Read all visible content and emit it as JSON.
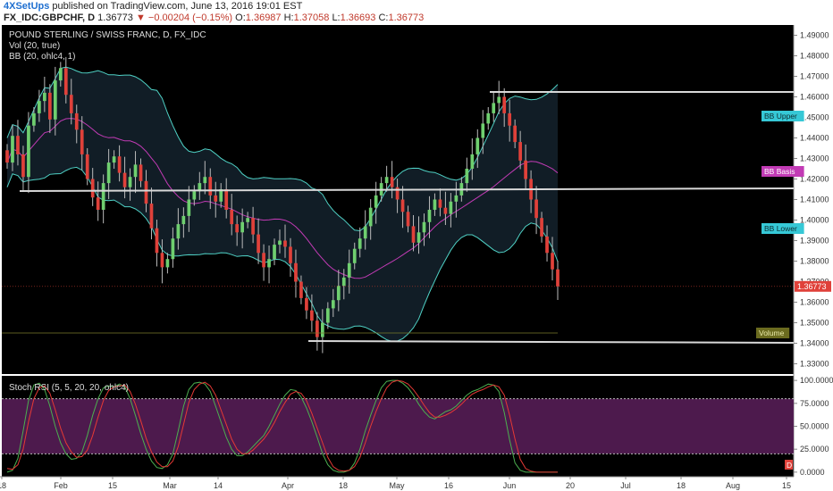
{
  "header": {
    "author": "4XSetUps",
    "published_text": "published on TradingView.com, June 13, 2016 19:01 EST",
    "symbol": "FX_IDC:GBPCHF, D",
    "last": "1.36773",
    "change": "−0.00204 (−0.15%)",
    "o_label": "O:",
    "o_value": "1.36987",
    "h_label": "H:",
    "h_value": "1.37058",
    "l_label": "L:",
    "l_value": "1.36693",
    "c_label": "C:",
    "c_value": "1.36773"
  },
  "legend": {
    "title": "POUND STERLING / SWISS FRANC, D, FX_IDC",
    "vol": "Vol (20, true)",
    "bb": "BB (20, ohlc4, 1)",
    "stoch": "Stoch RSI (5, 5, 20, 20, ohlc4)"
  },
  "colors": {
    "background": "#000000",
    "up": "#6fcf6f",
    "down": "#e0413a",
    "bb_band": "#4fd1c5",
    "bb_basis": "#c23bb5",
    "levels": "#d8d8d8",
    "rsi_k": "#4caf50",
    "rsi_d": "#e53935",
    "rsi_zone": "#5a1e5a"
  },
  "chart_data": [
    {
      "type": "candlestick",
      "title": "POUND STERLING / SWISS FRANC, D, FX_IDC",
      "ylim": [
        1.325,
        1.495
      ],
      "yticks": [
        "1.33000",
        "1.34000",
        "1.35000",
        "1.36000",
        "1.37000",
        "1.38000",
        "1.39000",
        "1.40000",
        "1.41000",
        "1.42000",
        "1.43000",
        "1.44000",
        "1.45000",
        "1.46000",
        "1.47000",
        "1.48000",
        "1.49000"
      ],
      "xticks": [
        "18",
        "Feb",
        "15",
        "Mar",
        "14",
        "Apr",
        "18",
        "May",
        "16",
        "Jun",
        "20",
        "Jul",
        "18",
        "Aug",
        "15"
      ],
      "last_price_label": "1.36773",
      "bb_labels": [
        "BB Upper",
        "BB Basis",
        "BB Lower",
        "Volume"
      ],
      "close": [
        1.428,
        1.441,
        1.432,
        1.421,
        1.446,
        1.452,
        1.458,
        1.462,
        1.449,
        1.468,
        1.474,
        1.461,
        1.452,
        1.444,
        1.432,
        1.42,
        1.411,
        1.405,
        1.418,
        1.428,
        1.431,
        1.423,
        1.416,
        1.421,
        1.427,
        1.419,
        1.408,
        1.396,
        1.384,
        1.377,
        1.381,
        1.391,
        1.398,
        1.402,
        1.41,
        1.414,
        1.418,
        1.421,
        1.412,
        1.409,
        1.415,
        1.405,
        1.398,
        1.394,
        1.399,
        1.401,
        1.393,
        1.384,
        1.377,
        1.381,
        1.388,
        1.39,
        1.387,
        1.379,
        1.37,
        1.362,
        1.356,
        1.351,
        1.343,
        1.35,
        1.357,
        1.361,
        1.368,
        1.372,
        1.379,
        1.386,
        1.391,
        1.397,
        1.406,
        1.412,
        1.418,
        1.421,
        1.416,
        1.41,
        1.404,
        1.397,
        1.389,
        1.394,
        1.399,
        1.405,
        1.41,
        1.406,
        1.403,
        1.409,
        1.412,
        1.418,
        1.425,
        1.432,
        1.44,
        1.447,
        1.452,
        1.457,
        1.46,
        1.452,
        1.446,
        1.438,
        1.429,
        1.42,
        1.41,
        1.401,
        1.392,
        1.384,
        1.376,
        1.3677
      ],
      "stoch_rsi": {
        "ylim": [
          -5,
          105
        ],
        "yticks": [
          "0.0000",
          "25.0000",
          "50.0000",
          "75.0000",
          "100.0000"
        ],
        "bands": [
          20,
          80
        ],
        "k": [
          0,
          2,
          15,
          45,
          78,
          95,
          97,
          90,
          72,
          50,
          32,
          20,
          14,
          15,
          22,
          40,
          62,
          80,
          92,
          94,
          93,
          96,
          93,
          80,
          62,
          42,
          25,
          12,
          5,
          4,
          8,
          20,
          45,
          72,
          90,
          97,
          98,
          96,
          88,
          72,
          55,
          38,
          25,
          18,
          18,
          22,
          28,
          34,
          40,
          50,
          62,
          74,
          84,
          90,
          89,
          82,
          70,
          55,
          38,
          20,
          8,
          2,
          0,
          0,
          2,
          10,
          25,
          45,
          62,
          78,
          92,
          99,
          100,
          100,
          97,
          92,
          84,
          74,
          66,
          60,
          58,
          62,
          66,
          68,
          72,
          78,
          84,
          88,
          90,
          93,
          96,
          95,
          88,
          65,
          35,
          10,
          2,
          0,
          0,
          0,
          0,
          0,
          0,
          0
        ],
        "d": [
          4,
          3,
          8,
          25,
          55,
          80,
          92,
          94,
          86,
          68,
          48,
          32,
          22,
          16,
          17,
          24,
          40,
          60,
          78,
          89,
          93,
          94,
          95,
          88,
          74,
          56,
          37,
          22,
          11,
          6,
          6,
          12,
          28,
          52,
          76,
          90,
          96,
          98,
          94,
          84,
          68,
          52,
          36,
          25,
          20,
          20,
          24,
          30,
          36,
          44,
          54,
          66,
          76,
          85,
          88,
          86,
          78,
          64,
          48,
          32,
          16,
          6,
          2,
          1,
          2,
          6,
          16,
          32,
          50,
          66,
          80,
          92,
          98,
          100,
          99,
          96,
          90,
          82,
          73,
          65,
          60,
          60,
          62,
          65,
          69,
          74,
          80,
          85,
          88,
          90,
          93,
          95,
          93,
          84,
          62,
          36,
          14,
          4,
          1,
          0,
          0,
          0,
          0,
          0
        ]
      }
    }
  ]
}
